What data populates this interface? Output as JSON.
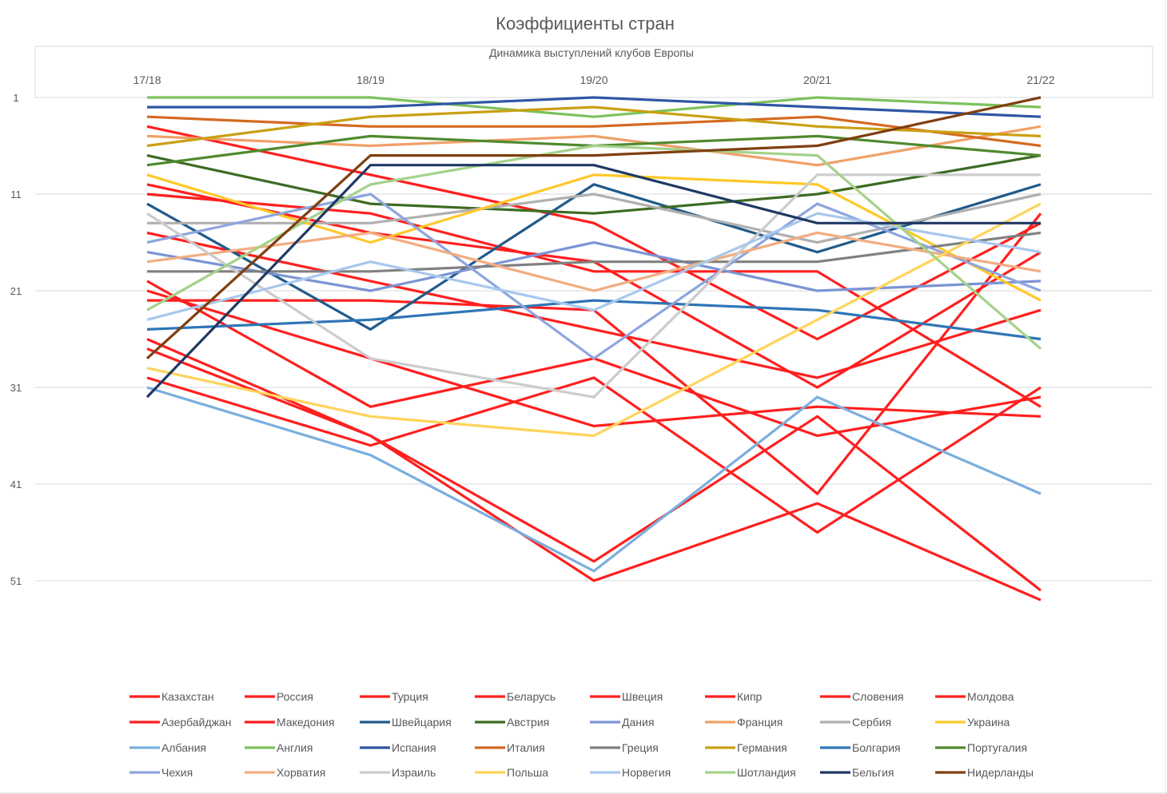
{
  "chart_data": {
    "type": "line",
    "title": "Коэффициенты стран",
    "subtitle": "Динамика выступлений клубов Европы",
    "xlabel": "",
    "ylabel": "",
    "x": [
      "17/18",
      "18/19",
      "19/20",
      "20/21",
      "21/22"
    ],
    "y_axis": {
      "reversed": true,
      "min": 1,
      "max": 51,
      "ticks": [
        1,
        11,
        21,
        31,
        41,
        51
      ],
      "grid": true
    },
    "x_axis_position": "top",
    "legend_position": "bottom",
    "series": [
      {
        "name": "Казахстан",
        "color": "#ff1f1f",
        "values": [
          27,
          36,
          51,
          43,
          53
        ]
      },
      {
        "name": "Россия",
        "color": "#ff1f1f",
        "values": [
          4,
          9,
          14,
          26,
          14
        ]
      },
      {
        "name": "Турция",
        "color": "#ff1f1f",
        "values": [
          10,
          15,
          18,
          31,
          17
        ]
      },
      {
        "name": "Беларусь",
        "color": "#ff1f1f",
        "values": [
          11,
          13,
          19,
          19,
          33
        ]
      },
      {
        "name": "Швеция",
        "color": "#ff1f1f",
        "values": [
          15,
          20,
          25,
          30,
          23
        ]
      },
      {
        "name": "Кипр",
        "color": "#ff1f1f",
        "values": [
          22,
          22,
          23,
          42,
          13
        ]
      },
      {
        "name": "Словения",
        "color": "#ff1f1f",
        "values": [
          20,
          33,
          28,
          36,
          32
        ]
      },
      {
        "name": "Молдова",
        "color": "#ff1f1f",
        "values": [
          26,
          36,
          49,
          34,
          52
        ]
      },
      {
        "name": "Азербайджан",
        "color": "#ff1f1f",
        "values": [
          21,
          28,
          35,
          33,
          34
        ]
      },
      {
        "name": "Македония",
        "color": "#ff1f1f",
        "values": [
          30,
          37,
          30,
          46,
          31
        ]
      },
      {
        "name": "Швейцария",
        "color": "#215a8a",
        "values": [
          12,
          25,
          10,
          17,
          10
        ]
      },
      {
        "name": "Австрия",
        "color": "#3d6b22",
        "values": [
          7,
          12,
          13,
          11,
          7
        ]
      },
      {
        "name": "Дания",
        "color": "#7b94d4",
        "values": [
          17,
          21,
          16,
          21,
          20
        ]
      },
      {
        "name": "Франция",
        "color": "#f0a068",
        "values": [
          5,
          6,
          5,
          8,
          4
        ]
      },
      {
        "name": "Сербия",
        "color": "#b0b0b0",
        "values": [
          14,
          14,
          11,
          16,
          11
        ]
      },
      {
        "name": "Украина",
        "color": "#ffc82a",
        "values": [
          9,
          16,
          9,
          10,
          22
        ]
      },
      {
        "name": "Албания",
        "color": "#7aaede",
        "values": [
          31,
          38,
          50,
          32,
          42
        ]
      },
      {
        "name": "Англия",
        "color": "#7dc15e",
        "values": [
          1,
          1,
          3,
          1,
          2
        ]
      },
      {
        "name": "Испания",
        "color": "#2f55a5",
        "values": [
          2,
          2,
          1,
          2,
          3
        ]
      },
      {
        "name": "Италия",
        "color": "#d46a20",
        "values": [
          3,
          4,
          4,
          3,
          6
        ]
      },
      {
        "name": "Греция",
        "color": "#808080",
        "values": [
          19,
          19,
          18,
          18,
          15
        ]
      },
      {
        "name": "Германия",
        "color": "#c9a013",
        "values": [
          6,
          3,
          2,
          4,
          5
        ]
      },
      {
        "name": "Болгария",
        "color": "#2e75b6",
        "values": [
          25,
          24,
          22,
          23,
          26
        ]
      },
      {
        "name": "Португалия",
        "color": "#4f8a2e",
        "values": [
          8,
          5,
          6,
          5,
          7
        ]
      },
      {
        "name": "Чехия",
        "color": "#8ea5de",
        "values": [
          16,
          11,
          28,
          12,
          21
        ]
      },
      {
        "name": "Хорватия",
        "color": "#f2ad80",
        "values": [
          18,
          15,
          21,
          15,
          19
        ]
      },
      {
        "name": "Израиль",
        "color": "#cccccc",
        "values": [
          13,
          28,
          32,
          9,
          9
        ]
      },
      {
        "name": "Польша",
        "color": "#ffd45a",
        "values": [
          29,
          34,
          36,
          24,
          12
        ]
      },
      {
        "name": "Норвегия",
        "color": "#a8c8ec",
        "values": [
          24,
          18,
          23,
          13,
          17
        ]
      },
      {
        "name": "Шотландия",
        "color": "#a4d28a",
        "values": [
          23,
          10,
          6,
          7,
          27
        ]
      },
      {
        "name": "Бельгия",
        "color": "#1f3864",
        "values": [
          32,
          8,
          8,
          14,
          14
        ]
      },
      {
        "name": "Нидерланды",
        "color": "#7f3f10",
        "values": [
          28,
          7,
          7,
          6,
          1
        ]
      }
    ]
  }
}
